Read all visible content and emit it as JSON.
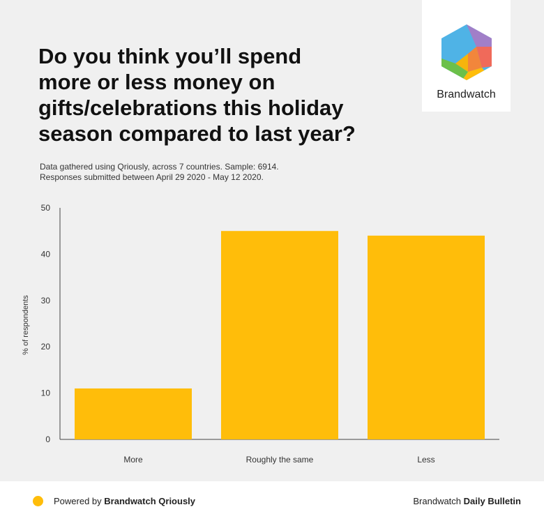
{
  "header": {
    "title": "Do you think you’ll spend\nmore or less money on\ngifts/celebrations this holiday\nseason compared to last year?",
    "subtitle_line1": "Data gathered using Qriously, across 7 countries. Sample: 6914.",
    "subtitle_line2": "Responses submitted between April 29 2020 - May 12 2020."
  },
  "logo": {
    "wordmark": "Brandwatch",
    "icon": "brandwatch-hexagon-icon"
  },
  "chart_data": {
    "type": "bar",
    "categories": [
      "More",
      "Roughly the same",
      "Less"
    ],
    "values": [
      11,
      45,
      44
    ],
    "title": "Do you think you’ll spend more or less money on gifts/celebrations this holiday season compared to last year?",
    "xlabel": "",
    "ylabel": "% of respondents",
    "ylim": [
      0,
      50
    ],
    "yticks": [
      0,
      10,
      20,
      30,
      40,
      50
    ],
    "grid": false,
    "bar_color": "#FFBD0A"
  },
  "footer": {
    "powered_prefix": "Powered by ",
    "powered_brand": "Brandwatch Qriously",
    "bulletin_prefix": "Brandwatch ",
    "bulletin_brand": "Daily Bulletin",
    "dot_color": "#FFBD0A"
  }
}
